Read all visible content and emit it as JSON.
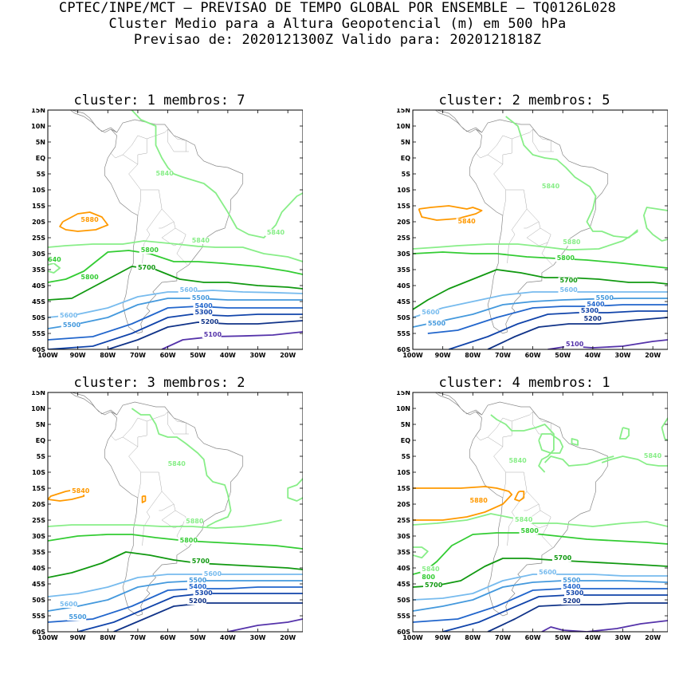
{
  "header": {
    "line1": "CPTEC/INPE/MCT — PREVISAO DE TEMPO GLOBAL POR ENSEMBLE — TQ0126L028",
    "line2": "Cluster Medio para a Altura Geopotencial (m) em 500 hPa",
    "line3": "Previsao de: 2020121300Z   Valido para: 2020121818Z"
  },
  "axes": {
    "lat_ticks": [
      "15N",
      "10N",
      "5N",
      "EQ",
      "5S",
      "10S",
      "15S",
      "20S",
      "25S",
      "30S",
      "35S",
      "40S",
      "45S",
      "50S",
      "55S",
      "60S"
    ],
    "lon_ticks": [
      "100W",
      "90W",
      "80W",
      "70W",
      "60W",
      "50W",
      "40W",
      "30W",
      "20W"
    ]
  },
  "contour_colors": {
    "5880": "#ff9900",
    "5840": "#88ee88",
    "5800": "#33cc33",
    "5700": "#119911",
    "5600": "#77bbee",
    "5500": "#4499dd",
    "5400": "#2266cc",
    "5300": "#1144aa",
    "5200": "#103388",
    "5100": "#5533aa"
  },
  "panels": [
    {
      "title": "cluster: 1   membros: 7",
      "labels": [
        "5840",
        "5840",
        "5840",
        "640",
        "5880",
        "5800",
        "5800",
        "5700",
        "5600",
        "5500",
        "5400",
        "5300",
        "5200",
        "5100",
        "5600",
        "5500"
      ]
    },
    {
      "title": "cluster: 2   membros: 5",
      "labels": [
        "5840",
        "5880",
        "5840",
        "5800",
        "5700",
        "5600",
        "5500",
        "5400",
        "5300",
        "5200",
        "5100",
        "5600",
        "5500"
      ]
    },
    {
      "title": "cluster: 3   membros: 2",
      "labels": [
        "5840",
        "5880",
        "5840",
        "5800",
        "5700",
        "5600",
        "5500",
        "5400",
        "5300",
        "5200",
        "5600",
        "5500"
      ]
    },
    {
      "title": "cluster: 4   membros: 1",
      "labels": [
        "5840",
        "5840",
        "5880",
        "5840",
        "5800",
        "5700",
        "5600",
        "5500",
        "5400",
        "5300",
        "5200",
        "5840",
        "800",
        "5700"
      ]
    }
  ]
}
